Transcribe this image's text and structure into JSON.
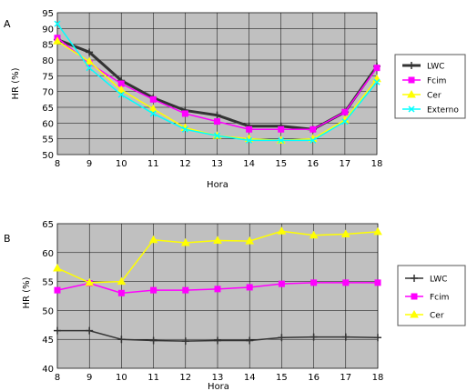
{
  "chart_data": [
    {
      "panel_label": "A",
      "type": "line",
      "xlabel": "Hora",
      "ylabel": "HR (%)",
      "x": [
        8,
        9,
        10,
        11,
        12,
        13,
        14,
        15,
        16,
        17,
        18
      ],
      "xlim": [
        8,
        18
      ],
      "ylim": [
        50,
        95
      ],
      "yticks": [
        50,
        55,
        60,
        65,
        70,
        75,
        80,
        85,
        90,
        95
      ],
      "grid": "on",
      "background": "#c0c0c0",
      "legend_position": "right",
      "series": [
        {
          "name": "LWC",
          "color": "#333333",
          "marker": "plus",
          "width": 3,
          "values": [
            86.5,
            82.5,
            73.5,
            68,
            64,
            62.5,
            59,
            59,
            58,
            63.5,
            78
          ]
        },
        {
          "name": "Fcim",
          "color": "#ff00ff",
          "marker": "square",
          "width": 1.5,
          "values": [
            87,
            79,
            72.5,
            67.5,
            63,
            60.5,
            58,
            58,
            58,
            63.5,
            77.5
          ]
        },
        {
          "name": "Cer",
          "color": "#ffff00",
          "marker": "triangle",
          "width": 1.5,
          "values": [
            86,
            79.5,
            70.5,
            64.5,
            58.5,
            56,
            55,
            54.5,
            55,
            61,
            74
          ]
        },
        {
          "name": "Externo",
          "color": "#00ffff",
          "marker": "x",
          "width": 1.5,
          "values": [
            91.5,
            77.5,
            69,
            63,
            58,
            56,
            54.5,
            54.5,
            54.5,
            60.5,
            73
          ]
        }
      ]
    },
    {
      "panel_label": "B",
      "type": "line",
      "xlabel": "Hora",
      "ylabel": "HR (%)",
      "x": [
        8,
        9,
        10,
        11,
        12,
        13,
        14,
        15,
        16,
        17,
        18
      ],
      "xlim": [
        8,
        18
      ],
      "ylim": [
        40,
        65
      ],
      "yticks": [
        40,
        45,
        50,
        55,
        60,
        65
      ],
      "grid": "on",
      "background": "#c0c0c0",
      "legend_position": "right",
      "series": [
        {
          "name": "LWC",
          "color": "#333333",
          "marker": "plus",
          "width": 1.5,
          "values": [
            46.5,
            46.5,
            45,
            44.8,
            44.7,
            44.8,
            44.8,
            45.3,
            45.4,
            45.4,
            45.3
          ]
        },
        {
          "name": "Fcim",
          "color": "#ff00ff",
          "marker": "square",
          "width": 1.5,
          "values": [
            53.5,
            54.7,
            53,
            53.5,
            53.5,
            53.7,
            54,
            54.6,
            54.8,
            54.8,
            54.8
          ]
        },
        {
          "name": "Cer",
          "color": "#ffff00",
          "marker": "triangle",
          "width": 1.5,
          "values": [
            57.3,
            54.8,
            55,
            62.2,
            61.7,
            62.1,
            62,
            63.7,
            63,
            63.2,
            63.6
          ]
        }
      ]
    }
  ]
}
